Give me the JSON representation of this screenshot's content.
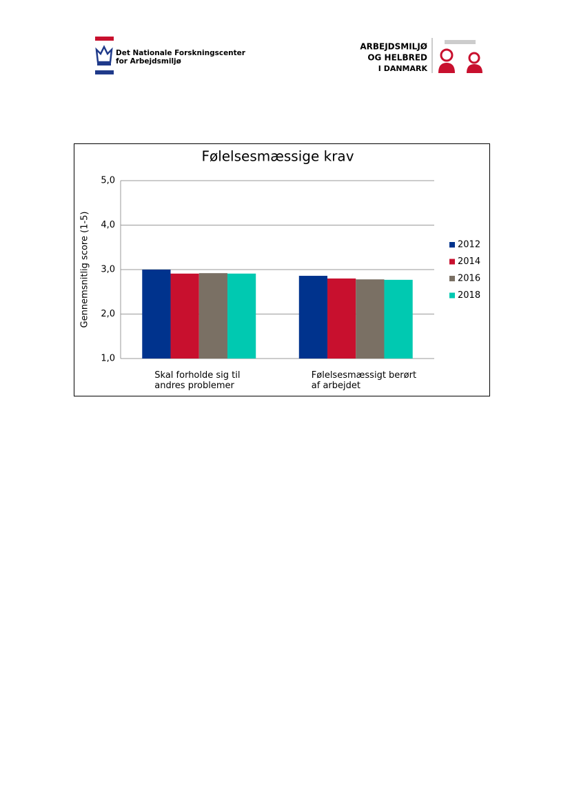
{
  "header": {
    "left_logo": [
      "Det Nationale Forskningscenter",
      "for Arbejdsmiljø"
    ],
    "right_logo": [
      "ARBEJDSMILJØ",
      "OG HELBRED",
      "I DANMARK"
    ]
  },
  "chart_data": {
    "type": "bar",
    "title": "Følelsesmæssige krav",
    "y_label": "Gennemsnitlig score (1-5)",
    "categories": [
      "Skal forholde sig til\nandres problemer",
      "Følelsesmæssigt berørt\naf arbejdet"
    ],
    "series": [
      {
        "name": "2012",
        "color": "#00338d",
        "values": [
          3.0,
          2.86
        ]
      },
      {
        "name": "2014",
        "color": "#c8102e",
        "values": [
          2.91,
          2.8
        ]
      },
      {
        "name": "2016",
        "color": "#7a7064",
        "values": [
          2.92,
          2.78
        ]
      },
      {
        "name": "2018",
        "color": "#00c9b1",
        "values": [
          2.91,
          2.77
        ]
      }
    ],
    "ylim": [
      1,
      5
    ],
    "yticks": [
      {
        "value": 1,
        "label": "1,0"
      },
      {
        "value": 2,
        "label": "2,0"
      },
      {
        "value": 3,
        "label": "3,0"
      },
      {
        "value": 4,
        "label": "4,0"
      },
      {
        "value": 5,
        "label": "5,0"
      }
    ],
    "grid": true,
    "legend": "right"
  }
}
